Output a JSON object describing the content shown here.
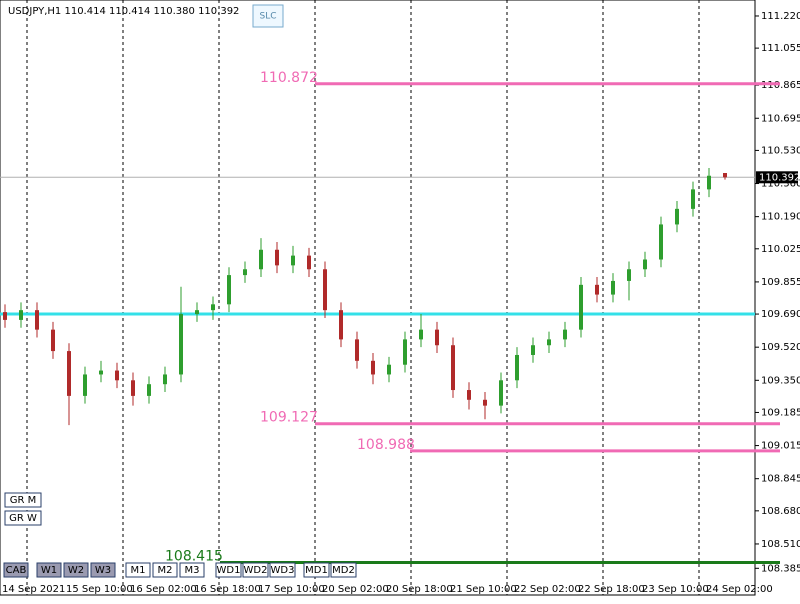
{
  "chart_data": {
    "type": "candlestick",
    "title": "USDJPY,H1 110.414 110.414 110.380 110.392",
    "button_top": "SLC",
    "buttons_bottom": [
      "CAB",
      "W1",
      "W2",
      "W3",
      "M1",
      "M2",
      "M3",
      "WD1",
      "WD2",
      "WD3",
      "MD1",
      "MD2"
    ],
    "buttons_left": [
      "GR M",
      "GR W"
    ],
    "x_labels": [
      "14 Sep 2021",
      "15 Sep 10:00",
      "16 Sep 02:00",
      "16 Sep 18:00",
      "17 Sep 10:00",
      "20 Sep 02:00",
      "20 Sep 18:00",
      "21 Sep 10:00",
      "22 Sep 02:00",
      "22 Sep 18:00",
      "23 Sep 10:00",
      "24 Sep 02:00"
    ],
    "ylim": [
      108.248,
      111.302
    ],
    "yticks": [
      {
        "value": 111.22,
        "label": "111.220"
      },
      {
        "value": 111.055,
        "label": "111.055"
      },
      {
        "value": 110.865,
        "label": "110.865"
      },
      {
        "value": 110.695,
        "label": "110.695"
      },
      {
        "value": 110.53,
        "label": "110.530"
      },
      {
        "value": 110.36,
        "label": "110.360"
      },
      {
        "value": 110.19,
        "label": "110.190"
      },
      {
        "value": 110.025,
        "label": "110.025"
      },
      {
        "value": 109.855,
        "label": "109.855"
      },
      {
        "value": 109.69,
        "label": "109.690"
      },
      {
        "value": 109.52,
        "label": "109.520"
      },
      {
        "value": 109.35,
        "label": "109.350"
      },
      {
        "value": 109.185,
        "label": "109.185"
      },
      {
        "value": 109.015,
        "label": "109.015"
      },
      {
        "value": 108.845,
        "label": "108.845"
      },
      {
        "value": 108.68,
        "label": "108.680"
      },
      {
        "value": 108.51,
        "label": "108.510"
      },
      {
        "value": 108.385,
        "label": "108.385"
      }
    ],
    "up_color": "#2e9e2e",
    "down_color": "#b02a2a",
    "open": [
      109.7,
      109.66,
      109.71,
      109.61,
      109.5,
      109.27,
      109.38,
      109.4,
      109.35,
      109.27,
      109.33,
      109.38,
      109.69,
      109.71,
      109.74,
      109.89,
      109.92,
      110.02,
      109.94,
      109.99,
      109.92,
      109.71,
      109.56,
      109.45,
      109.38,
      109.43,
      109.56,
      109.61,
      109.53,
      109.3,
      109.25,
      109.22,
      109.35,
      109.48,
      109.53,
      109.56,
      109.61,
      109.84,
      109.79,
      109.86,
      109.92,
      109.97,
      110.15,
      110.23,
      110.33,
      110.414
    ],
    "high": [
      109.74,
      109.75,
      109.75,
      109.65,
      109.54,
      109.42,
      109.45,
      109.44,
      109.39,
      109.37,
      109.42,
      109.83,
      109.75,
      109.78,
      109.93,
      109.96,
      110.08,
      110.06,
      110.04,
      110.03,
      109.96,
      109.75,
      109.6,
      109.49,
      109.47,
      109.6,
      109.69,
      109.65,
      109.57,
      109.34,
      109.29,
      109.39,
      109.52,
      109.57,
      109.6,
      109.65,
      109.88,
      109.88,
      109.9,
      109.96,
      110.01,
      110.19,
      110.27,
      110.37,
      110.44,
      110.414
    ],
    "low": [
      109.62,
      109.62,
      109.57,
      109.46,
      109.12,
      109.23,
      109.34,
      109.31,
      109.22,
      109.23,
      109.29,
      109.34,
      109.65,
      109.66,
      109.7,
      109.85,
      109.88,
      109.9,
      109.9,
      109.88,
      109.67,
      109.52,
      109.41,
      109.33,
      109.34,
      109.39,
      109.52,
      109.49,
      109.26,
      109.2,
      109.15,
      109.18,
      109.31,
      109.44,
      109.49,
      109.52,
      109.57,
      109.75,
      109.75,
      109.76,
      109.88,
      109.93,
      110.11,
      110.19,
      110.29,
      110.38
    ],
    "close": [
      109.66,
      109.71,
      109.61,
      109.5,
      109.27,
      109.38,
      109.4,
      109.35,
      109.27,
      109.33,
      109.38,
      109.69,
      109.71,
      109.74,
      109.89,
      109.92,
      110.02,
      109.94,
      109.99,
      109.92,
      109.71,
      109.56,
      109.45,
      109.38,
      109.43,
      109.56,
      109.61,
      109.53,
      109.3,
      109.25,
      109.22,
      109.35,
      109.48,
      109.53,
      109.56,
      109.61,
      109.84,
      109.79,
      109.86,
      109.92,
      109.97,
      110.15,
      110.23,
      110.33,
      110.4,
      110.392
    ],
    "levels": [
      {
        "price": 110.872,
        "color": "#f06ab4"
      },
      {
        "price": 109.69,
        "color": "#33e0e8"
      },
      {
        "price": 109.127,
        "color": "#f06ab4"
      },
      {
        "price": 108.988,
        "color": "#f06ab4"
      },
      {
        "price": 108.415,
        "color": "#1a7a1a"
      }
    ],
    "current_price": 110.392
  }
}
